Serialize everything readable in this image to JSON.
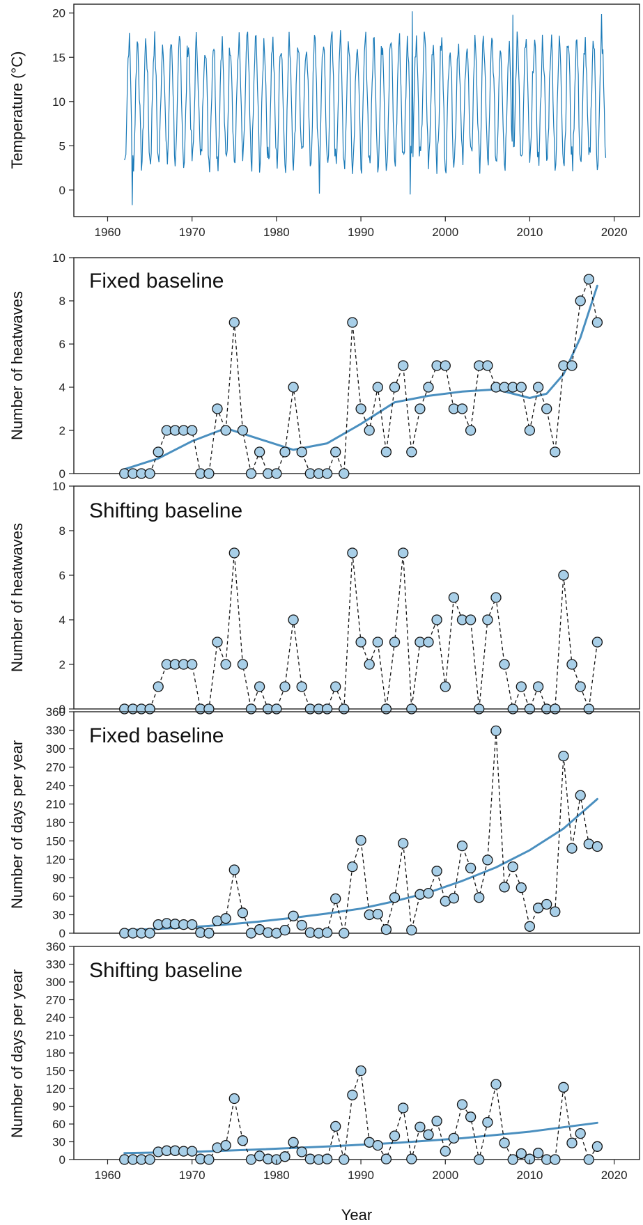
{
  "colors": {
    "line": "#1a7ab8",
    "trend": "#4a8fbf",
    "marker_fill": "#a8cfe8",
    "marker_stroke": "#111111",
    "dash": "#111111"
  },
  "xlabel": "Year",
  "chart_data": [
    {
      "type": "line",
      "ylabel": "Temperature (°C)",
      "xlim": [
        1956,
        2023
      ],
      "ylim": [
        -3,
        21
      ],
      "yticks": [
        0,
        5,
        10,
        15,
        20
      ],
      "xticks": [
        1960,
        1970,
        1980,
        1990,
        2000,
        2010,
        2020
      ],
      "series": [
        {
          "x_start": 1962.0,
          "x_end": 2019.0,
          "step_months": 1
        }
      ],
      "annual_cycle": {
        "winter_min_approx": 3,
        "summer_max_approx": 17
      },
      "extremes": [
        {
          "x": 1962.9,
          "y": -1.7
        },
        {
          "x": 1995.8,
          "y": -0.5
        },
        {
          "x": 1996.1,
          "y": 20.2
        },
        {
          "x": 1985.1,
          "y": -0.4
        },
        {
          "x": 2008.0,
          "y": 19.8
        },
        {
          "x": 2018.5,
          "y": 19.9
        }
      ]
    },
    {
      "type": "line",
      "title": "Fixed baseline",
      "ylabel": "Number of heatwaves",
      "xlim": [
        1956,
        2023
      ],
      "ylim": [
        0,
        10
      ],
      "yticks": [
        0,
        2,
        4,
        6,
        8,
        10
      ],
      "x": [
        1962,
        1963,
        1964,
        1965,
        1966,
        1967,
        1968,
        1969,
        1970,
        1971,
        1972,
        1973,
        1974,
        1975,
        1976,
        1977,
        1978,
        1979,
        1980,
        1981,
        1982,
        1983,
        1984,
        1985,
        1986,
        1987,
        1988,
        1989,
        1990,
        1991,
        1992,
        1993,
        1994,
        1995,
        1996,
        1997,
        1998,
        1999,
        2000,
        2001,
        2002,
        2003,
        2004,
        2005,
        2006,
        2007,
        2008,
        2009,
        2010,
        2011,
        2012,
        2013,
        2014,
        2015,
        2016,
        2017,
        2018
      ],
      "values": [
        0,
        0,
        0,
        0,
        1,
        2,
        2,
        2,
        2,
        0,
        0,
        3,
        2,
        7,
        2,
        0,
        1,
        0,
        0,
        1,
        4,
        1,
        0,
        0,
        0,
        1,
        0,
        7,
        3,
        2,
        4,
        1,
        4,
        5,
        1,
        3,
        4,
        5,
        5,
        3,
        3,
        2,
        5,
        5,
        4,
        4,
        4,
        4,
        2,
        4,
        3,
        1,
        5,
        5,
        8,
        9,
        7
      ],
      "trend": {
        "x": [
          1962,
          1966,
          1970,
          1974,
          1978,
          1982,
          1986,
          1990,
          1994,
          1998,
          2002,
          2006,
          2010,
          2012,
          2014,
          2016,
          2018
        ],
        "y": [
          0.2,
          0.7,
          1.5,
          2.1,
          1.6,
          1.1,
          1.4,
          2.3,
          3.3,
          3.6,
          3.8,
          3.9,
          3.5,
          3.7,
          4.6,
          6.3,
          8.7
        ]
      }
    },
    {
      "type": "line",
      "title": "Shifting baseline",
      "ylabel": "Number of heatwaves",
      "xlim": [
        1956,
        2023
      ],
      "ylim": [
        0,
        10
      ],
      "yticks": [
        0,
        2,
        4,
        6,
        8,
        10
      ],
      "x": [
        1962,
        1963,
        1964,
        1965,
        1966,
        1967,
        1968,
        1969,
        1970,
        1971,
        1972,
        1973,
        1974,
        1975,
        1976,
        1977,
        1978,
        1979,
        1980,
        1981,
        1982,
        1983,
        1984,
        1985,
        1986,
        1987,
        1988,
        1989,
        1990,
        1991,
        1992,
        1993,
        1994,
        1995,
        1996,
        1997,
        1998,
        1999,
        2000,
        2001,
        2002,
        2003,
        2004,
        2005,
        2006,
        2007,
        2008,
        2009,
        2010,
        2011,
        2012,
        2013,
        2014,
        2015,
        2016,
        2017,
        2018
      ],
      "values": [
        0,
        0,
        0,
        0,
        1,
        2,
        2,
        2,
        2,
        0,
        0,
        3,
        2,
        7,
        2,
        0,
        1,
        0,
        0,
        1,
        4,
        1,
        0,
        0,
        0,
        1,
        0,
        7,
        3,
        2,
        3,
        0,
        3,
        7,
        0,
        3,
        3,
        4,
        1,
        5,
        4,
        4,
        0,
        4,
        5,
        2,
        0,
        1,
        0,
        1,
        0,
        0,
        6,
        2,
        1,
        0,
        3
      ]
    },
    {
      "type": "line",
      "title": "Fixed baseline",
      "ylabel": "Number of days per year",
      "xlim": [
        1956,
        2023
      ],
      "ylim": [
        0,
        360
      ],
      "yticks": [
        0,
        30,
        60,
        90,
        120,
        150,
        180,
        210,
        240,
        270,
        300,
        330,
        360
      ],
      "x": [
        1962,
        1963,
        1964,
        1965,
        1966,
        1967,
        1968,
        1969,
        1970,
        1971,
        1972,
        1973,
        1974,
        1975,
        1976,
        1977,
        1978,
        1979,
        1980,
        1981,
        1982,
        1983,
        1984,
        1985,
        1986,
        1987,
        1988,
        1989,
        1990,
        1991,
        1992,
        1993,
        1994,
        1995,
        1996,
        1997,
        1998,
        1999,
        2000,
        2001,
        2002,
        2003,
        2004,
        2005,
        2006,
        2007,
        2008,
        2009,
        2010,
        2011,
        2012,
        2013,
        2014,
        2015,
        2016,
        2017,
        2018
      ],
      "values": [
        0,
        0,
        0,
        0,
        14,
        16,
        15,
        14,
        14,
        1,
        0,
        20,
        24,
        103,
        33,
        0,
        6,
        1,
        0,
        5,
        28,
        13,
        1,
        0,
        1,
        56,
        0,
        108,
        151,
        30,
        31,
        6,
        58,
        146,
        5,
        63,
        65,
        101,
        52,
        57,
        142,
        106,
        58,
        119,
        329,
        75,
        108,
        74,
        11,
        41,
        47,
        35,
        288,
        138,
        224,
        145,
        141
      ],
      "trend": {
        "x": [
          1962,
          1966,
          1970,
          1974,
          1978,
          1982,
          1986,
          1990,
          1994,
          1998,
          2002,
          2006,
          2010,
          2014,
          2018
        ],
        "y": [
          5,
          7,
          10,
          14,
          19,
          25,
          32,
          40,
          52,
          66,
          85,
          107,
          135,
          170,
          218
        ]
      }
    },
    {
      "type": "line",
      "title": "Shifting baseline",
      "ylabel": "Number of days per year",
      "xlim": [
        1956,
        2023
      ],
      "ylim": [
        0,
        360
      ],
      "yticks": [
        0,
        30,
        60,
        90,
        120,
        150,
        180,
        210,
        240,
        270,
        300,
        330,
        360
      ],
      "xticks": [
        1960,
        1970,
        1980,
        1990,
        2000,
        2010,
        2020
      ],
      "x": [
        1962,
        1963,
        1964,
        1965,
        1966,
        1967,
        1968,
        1969,
        1970,
        1971,
        1972,
        1973,
        1974,
        1975,
        1976,
        1977,
        1978,
        1979,
        1980,
        1981,
        1982,
        1983,
        1984,
        1985,
        1986,
        1987,
        1988,
        1989,
        1990,
        1991,
        1992,
        1993,
        1994,
        1995,
        1996,
        1997,
        1998,
        1999,
        2000,
        2001,
        2002,
        2003,
        2004,
        2005,
        2006,
        2007,
        2008,
        2009,
        2010,
        2011,
        2012,
        2013,
        2014,
        2015,
        2016,
        2017,
        2018
      ],
      "values": [
        0,
        0,
        0,
        0,
        13,
        15,
        15,
        14,
        14,
        1,
        0,
        20,
        24,
        103,
        32,
        0,
        6,
        1,
        0,
        5,
        29,
        13,
        1,
        0,
        1,
        56,
        0,
        109,
        150,
        29,
        24,
        1,
        40,
        87,
        1,
        55,
        42,
        65,
        14,
        36,
        93,
        72,
        0,
        63,
        127,
        28,
        0,
        10,
        1,
        11,
        0,
        0,
        122,
        28,
        44,
        0,
        22
      ],
      "trend": {
        "x": [
          1962,
          1970,
          1978,
          1986,
          1994,
          2002,
          2010,
          2018
        ],
        "y": [
          11,
          13,
          17,
          22,
          28,
          36,
          47,
          62
        ]
      }
    }
  ]
}
